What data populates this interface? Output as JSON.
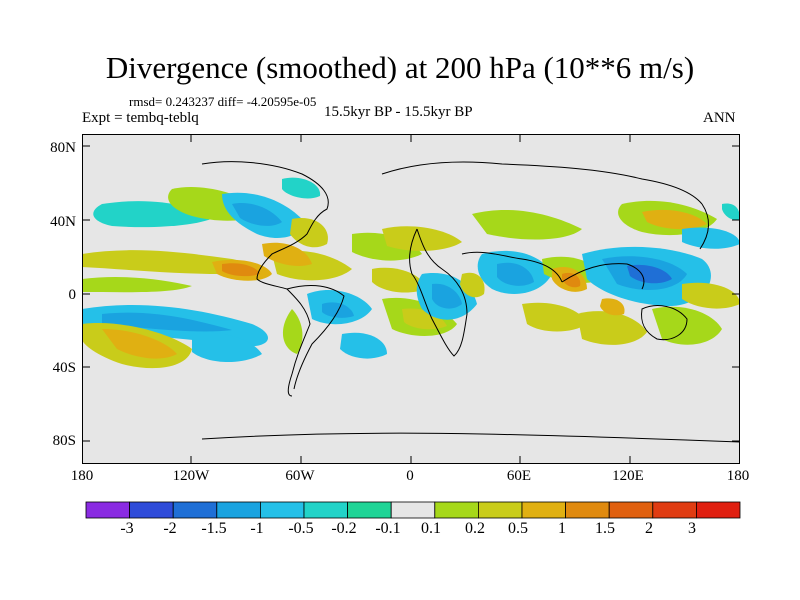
{
  "title": "Divergence (smoothed) at 200 hPa (10**6 m/s)",
  "stats": "rmsd= 0.243237 diff= -4.20595e-05",
  "experiment": "Expt = tembq-teblq",
  "period": "15.5kyr BP - 15.5kyr BP",
  "season": "ANN",
  "lat_labels": [
    "80N",
    "40N",
    "0",
    "40S",
    "80S"
  ],
  "lon_labels": [
    "180",
    "120W",
    "60W",
    "0",
    "60E",
    "120E",
    "180"
  ],
  "colorbar": {
    "levels": [
      "-3",
      "-2",
      "-1.5",
      "-1",
      "-0.5",
      "-0.2",
      "-0.1",
      "0.1",
      "0.2",
      "0.5",
      "1",
      "1.5",
      "2",
      "3"
    ],
    "colors": [
      "#8a2be2",
      "#2e4bd9",
      "#1f6fd6",
      "#1aa3e0",
      "#25c0e8",
      "#22d3c8",
      "#1fd496",
      "#e6e6e6",
      "#a6d81a",
      "#c9cc1a",
      "#e0b012",
      "#e08a0f",
      "#e0600f",
      "#e03c12",
      "#e01f10"
    ]
  }
}
